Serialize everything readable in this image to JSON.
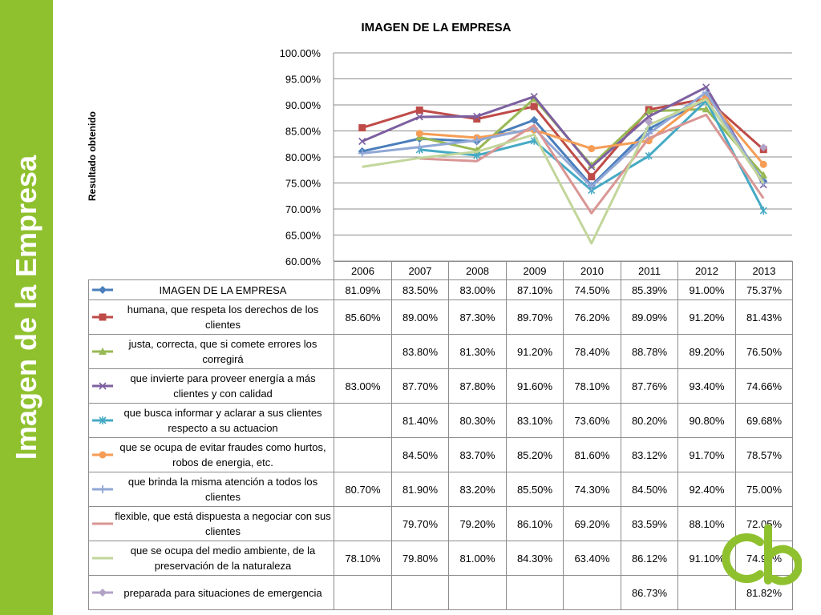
{
  "slide": {
    "side_title": "Imagen de la Empresa"
  },
  "chart_data": {
    "type": "line",
    "title": "IMAGEN DE LA EMPRESA",
    "ylabel": "Resultado obtenido",
    "xlabel": "",
    "ylim": [
      60,
      100
    ],
    "y_tick_labels": [
      "100.00%",
      "95.00%",
      "90.00%",
      "85.00%",
      "80.00%",
      "75.00%",
      "70.00%",
      "65.00%",
      "60.00%"
    ],
    "categories": [
      "2006",
      "2007",
      "2008",
      "2009",
      "2010",
      "2011",
      "2012",
      "2013"
    ],
    "grid": true,
    "data_table": true,
    "series": [
      {
        "name": "IMAGEN DE LA EMPRESA",
        "color": "#4a7ebb",
        "marker": "diamond",
        "values": [
          81.09,
          83.5,
          83.0,
          87.1,
          74.5,
          85.39,
          91.0,
          75.37
        ],
        "labels": [
          "81.09%",
          "83.50%",
          "83.00%",
          "87.10%",
          "74.50%",
          "85.39%",
          "91.00%",
          "75.37%"
        ]
      },
      {
        "name": "humana, que respeta los derechos de los clientes",
        "color": "#be4b48",
        "marker": "square",
        "values": [
          85.6,
          89.0,
          87.3,
          89.7,
          76.2,
          89.09,
          91.2,
          81.43
        ],
        "labels": [
          "85.60%",
          "89.00%",
          "87.30%",
          "89.70%",
          "76.20%",
          "89.09%",
          "91.20%",
          "81.43%"
        ]
      },
      {
        "name": "justa, correcta, que si comete errores los corregirá",
        "color": "#98b954",
        "marker": "triangle",
        "values": [
          null,
          83.8,
          81.3,
          91.2,
          78.4,
          88.78,
          89.2,
          76.5
        ],
        "labels": [
          "",
          "83.80%",
          "81.30%",
          "91.20%",
          "78.40%",
          "88.78%",
          "89.20%",
          "76.50%"
        ]
      },
      {
        "name": "que invierte para proveer energía a más clientes y con calidad",
        "color": "#7d60a0",
        "marker": "x",
        "values": [
          83.0,
          87.7,
          87.8,
          91.6,
          78.1,
          87.76,
          93.4,
          74.66
        ],
        "labels": [
          "83.00%",
          "87.70%",
          "87.80%",
          "91.60%",
          "78.10%",
          "87.76%",
          "93.40%",
          "74.66%"
        ]
      },
      {
        "name": "que busca informar y aclarar a sus clientes respecto a su actuacion",
        "color": "#46aac5",
        "marker": "star",
        "values": [
          null,
          81.4,
          80.3,
          83.1,
          73.6,
          80.2,
          90.8,
          69.68
        ],
        "labels": [
          "",
          "81.40%",
          "80.30%",
          "83.10%",
          "73.60%",
          "80.20%",
          "90.80%",
          "69.68%"
        ]
      },
      {
        "name": "que se ocupa de evitar fraudes como hurtos, robos de energia, etc.",
        "color": "#f59d56",
        "marker": "circle",
        "values": [
          null,
          84.5,
          83.7,
          85.2,
          81.6,
          83.12,
          91.7,
          78.57
        ],
        "labels": [
          "",
          "84.50%",
          "83.70%",
          "85.20%",
          "81.60%",
          "83.12%",
          "91.70%",
          "78.57%"
        ]
      },
      {
        "name": "que brinda la misma atención a todos los clientes",
        "color": "#91a8d6",
        "marker": "plus",
        "values": [
          80.7,
          81.9,
          83.2,
          85.5,
          74.3,
          84.5,
          92.4,
          75.0
        ],
        "labels": [
          "80.70%",
          "81.90%",
          "83.20%",
          "85.50%",
          "74.30%",
          "84.50%",
          "92.40%",
          "75.00%"
        ]
      },
      {
        "name": "flexible, que está dispuesta a negociar con sus clientes",
        "color": "#d99694",
        "marker": "none",
        "values": [
          null,
          79.7,
          79.2,
          86.1,
          69.2,
          83.59,
          88.1,
          72.05
        ],
        "labels": [
          "",
          "79.70%",
          "79.20%",
          "86.10%",
          "69.20%",
          "83.59%",
          "88.10%",
          "72.05%"
        ]
      },
      {
        "name": "que se ocupa del medio ambiente, de la preservación de la naturaleza",
        "color": "#c2d69b",
        "marker": "none",
        "values": [
          78.1,
          79.8,
          81.0,
          84.3,
          63.4,
          86.12,
          91.1,
          74.93
        ],
        "labels": [
          "78.10%",
          "79.80%",
          "81.00%",
          "84.30%",
          "63.40%",
          "86.12%",
          "91.10%",
          "74.93%"
        ]
      },
      {
        "name": "preparada para situaciones de emergencia",
        "color": "#b3a2c7",
        "marker": "diamond",
        "values": [
          null,
          null,
          null,
          null,
          null,
          86.73,
          null,
          81.82
        ],
        "labels": [
          "",
          "",
          "",
          "",
          "",
          "86.73%",
          "",
          "81.82%"
        ]
      }
    ]
  }
}
